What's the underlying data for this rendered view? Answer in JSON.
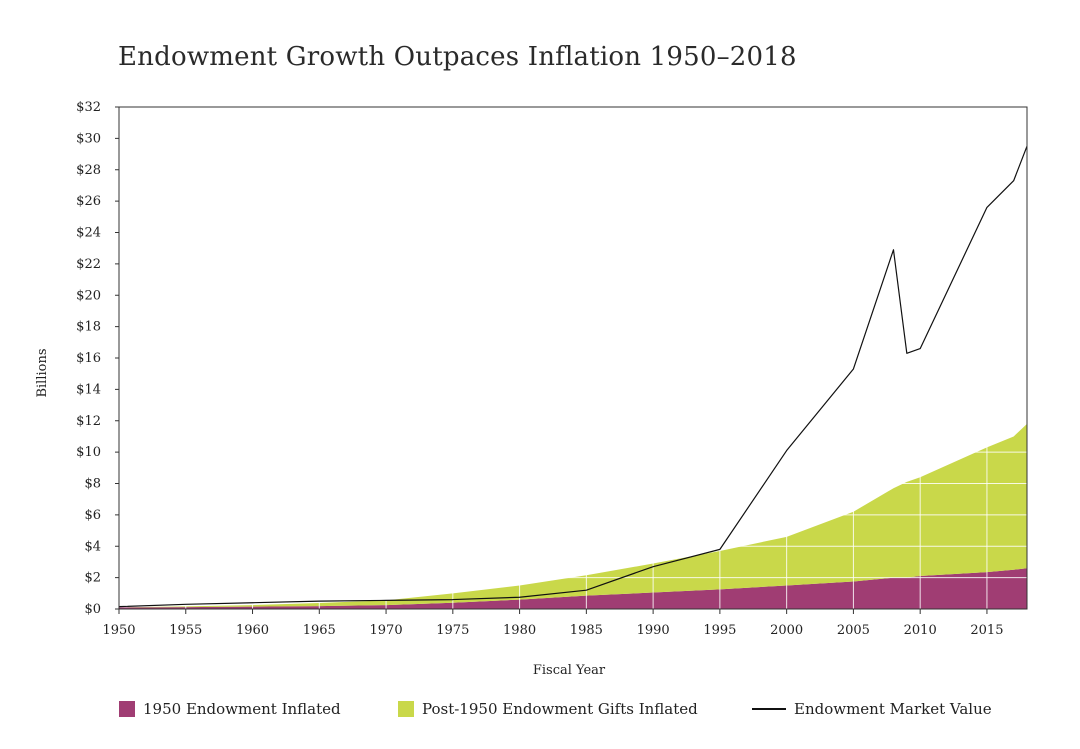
{
  "chart_data": {
    "type": "area",
    "title": "Endowment Growth Outpaces Inflation 1950–2018",
    "xlabel": "Fiscal Year",
    "ylabel": "Billions",
    "xlim": [
      1950,
      2018
    ],
    "ylim": [
      0,
      32
    ],
    "x_ticks": [
      "1950",
      "1955",
      "1960",
      "1965",
      "1970",
      "1975",
      "1980",
      "1985",
      "1990",
      "1995",
      "2000",
      "2005",
      "2010",
      "2015"
    ],
    "y_ticks": [
      "$0",
      "$2",
      "$4",
      "$6",
      "$8",
      "$10",
      "$12",
      "$14",
      "$16",
      "$18",
      "$20",
      "$22",
      "$24",
      "$26",
      "$28",
      "$30",
      "$32"
    ],
    "grid": true,
    "legend_position": "bottom",
    "stacked": true,
    "x": [
      1950,
      1955,
      1960,
      1965,
      1970,
      1975,
      1980,
      1985,
      1990,
      1995,
      2000,
      2005,
      2008,
      2009,
      2010,
      2015,
      2017,
      2018
    ],
    "series": [
      {
        "name": "1950 Endowment Inflated",
        "kind": "area",
        "color": "#a03d73",
        "values": [
          0.1,
          0.12,
          0.15,
          0.18,
          0.25,
          0.4,
          0.6,
          0.85,
          1.05,
          1.25,
          1.5,
          1.75,
          2.0,
          2.0,
          2.1,
          2.35,
          2.5,
          2.6
        ]
      },
      {
        "name": "Post-1950 Endowment Gifts Inflated",
        "kind": "area",
        "color": "#c9d84a",
        "values": [
          0.0,
          0.05,
          0.1,
          0.2,
          0.3,
          0.6,
          0.9,
          1.3,
          1.85,
          2.45,
          3.1,
          4.45,
          5.7,
          6.1,
          6.3,
          7.95,
          8.5,
          9.2
        ]
      },
      {
        "name": "Endowment Market Value",
        "kind": "line",
        "color": "#111111",
        "values": [
          0.15,
          0.3,
          0.4,
          0.5,
          0.55,
          0.6,
          0.75,
          1.2,
          2.7,
          3.8,
          10.1,
          15.3,
          22.9,
          16.3,
          16.6,
          25.6,
          27.3,
          29.5
        ]
      }
    ]
  }
}
